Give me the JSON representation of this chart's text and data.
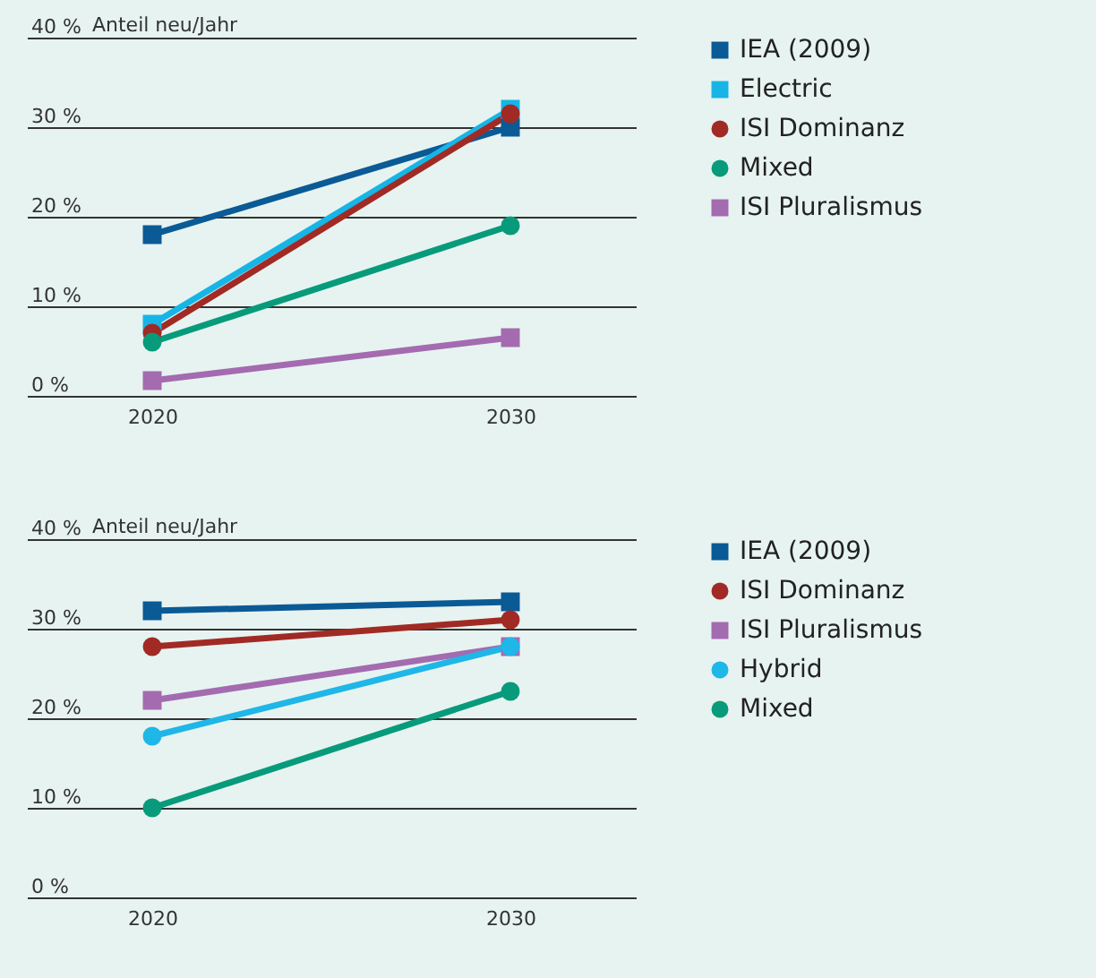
{
  "chart_data": [
    {
      "type": "line",
      "ylabel": "Anteil neu/Jahr",
      "categories": [
        "2020",
        "2030"
      ],
      "ylim": [
        0,
        40
      ],
      "yticks": [
        {
          "value": 0,
          "label": "0 %"
        },
        {
          "value": 10,
          "label": "10 %"
        },
        {
          "value": 20,
          "label": "20 %"
        },
        {
          "value": 30,
          "label": "30 %"
        },
        {
          "value": 40,
          "label": "40 %"
        }
      ],
      "grid": "y",
      "legend": "top right",
      "series": [
        {
          "name": "IEA (2009)",
          "color": "#0a5a96",
          "marker": "square",
          "values": [
            18,
            30
          ]
        },
        {
          "name": "Electric",
          "color": "#16b5e6",
          "marker": "square",
          "values": [
            8,
            32
          ]
        },
        {
          "name": "ISI Dominanz",
          "color": "#a12a25",
          "marker": "circle",
          "values": [
            7,
            31.5
          ]
        },
        {
          "name": "Mixed",
          "color": "#079b7b",
          "marker": "circle",
          "values": [
            6,
            19
          ]
        },
        {
          "name": "ISI Pluralismus",
          "color": "#a46bb0",
          "marker": "square",
          "values": [
            1.7,
            6.5
          ]
        }
      ]
    },
    {
      "type": "line",
      "ylabel": "Anteil neu/Jahr",
      "categories": [
        "2020",
        "2030"
      ],
      "ylim": [
        0,
        40
      ],
      "yticks": [
        {
          "value": 0,
          "label": "0 %"
        },
        {
          "value": 10,
          "label": "10 %"
        },
        {
          "value": 20,
          "label": "20 %"
        },
        {
          "value": 30,
          "label": "30 %"
        },
        {
          "value": 40,
          "label": "40 %"
        }
      ],
      "grid": "y",
      "legend": "top right",
      "series": [
        {
          "name": "IEA (2009)",
          "color": "#0a5a96",
          "marker": "square",
          "values": [
            32,
            33
          ]
        },
        {
          "name": "ISI Dominanz",
          "color": "#a12a25",
          "marker": "circle",
          "values": [
            28,
            31
          ]
        },
        {
          "name": "ISI Pluralismus",
          "color": "#a46bb0",
          "marker": "square",
          "values": [
            22,
            28
          ]
        },
        {
          "name": "Hybrid",
          "color": "#1fb6e8",
          "marker": "circle",
          "values": [
            18,
            28
          ]
        },
        {
          "name": "Mixed",
          "color": "#079b7b",
          "marker": "circle",
          "values": [
            10,
            23
          ]
        }
      ]
    }
  ]
}
